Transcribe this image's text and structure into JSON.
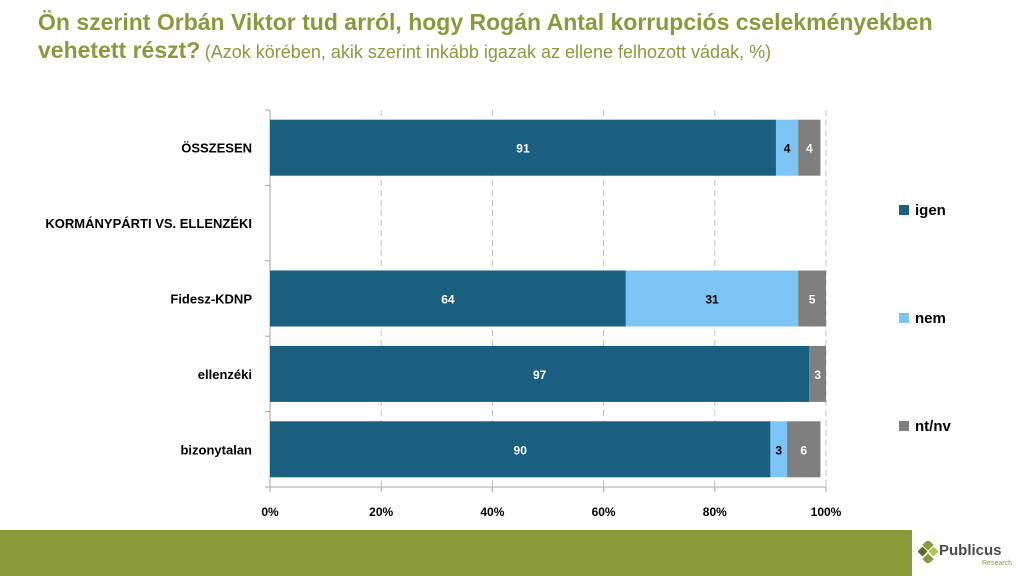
{
  "title": {
    "main": "Ön szerint Orbán Viktor tud arról, hogy Rogán Antal korrupciós cselekményekben vehetett részt?",
    "sub": "(Azok körében, akik szerint inkább igazak az ellene felhozott vádak, %)"
  },
  "logo": {
    "name": "Publicus",
    "tagline": "Research"
  },
  "colors": {
    "igen": "#1a5e80",
    "nem": "#7cc4f4",
    "ntnv": "#7f7f7f",
    "accent": "#8a9a3b"
  },
  "chart_data": {
    "type": "bar",
    "orientation": "horizontal",
    "stacked": true,
    "categories": [
      "ÖSSZESEN",
      "KORMÁNYPÁRTI VS. ELLENZÉKI",
      "Fidesz-KDNP",
      "ellenzéki",
      "bizonytalan"
    ],
    "series": [
      {
        "name": "igen",
        "values": [
          91,
          null,
          64,
          97,
          90
        ]
      },
      {
        "name": "nem",
        "values": [
          4,
          null,
          31,
          null,
          3
        ]
      },
      {
        "name": "nt/nv",
        "values": [
          4,
          null,
          5,
          3,
          6
        ]
      }
    ],
    "xlim": [
      0,
      100
    ],
    "xticks": [
      "0%",
      "20%",
      "40%",
      "60%",
      "80%",
      "100%"
    ],
    "grid": true,
    "legend_position": "right"
  }
}
